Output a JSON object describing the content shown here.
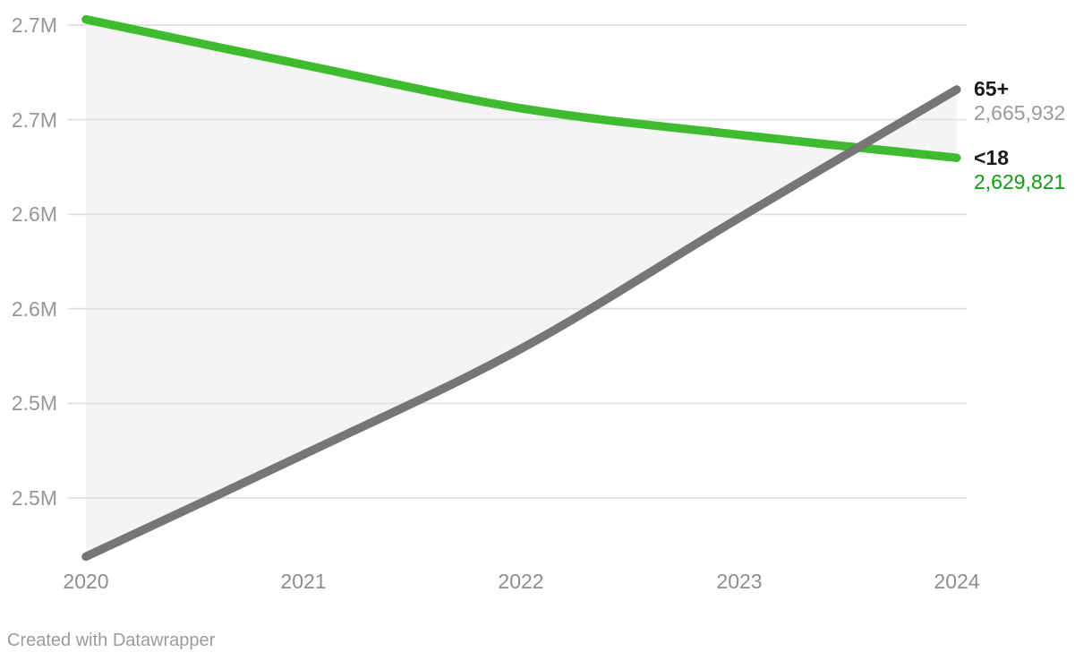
{
  "chart_data": {
    "type": "line",
    "title": "",
    "x": [
      "2020",
      "2021",
      "2022",
      "2023",
      "2024"
    ],
    "series": [
      {
        "name": "65+",
        "values": [
          2419000,
          2473000,
          2529000,
          2598000,
          2665932
        ],
        "color": "#767676",
        "end_label": "65+",
        "end_value": "2,665,932",
        "end_value_color": "#9b9b9b"
      },
      {
        "name": "<18",
        "values": [
          2703000,
          2679000,
          2656000,
          2642000,
          2629821
        ],
        "color": "#3ebb2e",
        "end_label": "<18",
        "end_value": "2,629,821",
        "end_value_color": "#0c9e10"
      }
    ],
    "y_axis": {
      "ticks": [
        2700000,
        2650000,
        2600000,
        2550000,
        2500000,
        2450000
      ],
      "labels": [
        "2.7M",
        "2.7M",
        "2.6M",
        "2.6M",
        "2.5M",
        "2.5M"
      ]
    },
    "ylim": [
      2419000,
      2703000
    ],
    "grid": "horizontal",
    "legend_position": "right-end-labels",
    "area_between_series": true,
    "area_color": "#f4f4f4",
    "grid_color": "#e3e3e3"
  },
  "footer": {
    "credit": "Created with Datawrapper"
  },
  "colors": {
    "background": "#ffffff",
    "axis_text_y": "#979797",
    "axis_text_x": "#8d8d8d",
    "annotation_name": "#1a1a1a"
  }
}
